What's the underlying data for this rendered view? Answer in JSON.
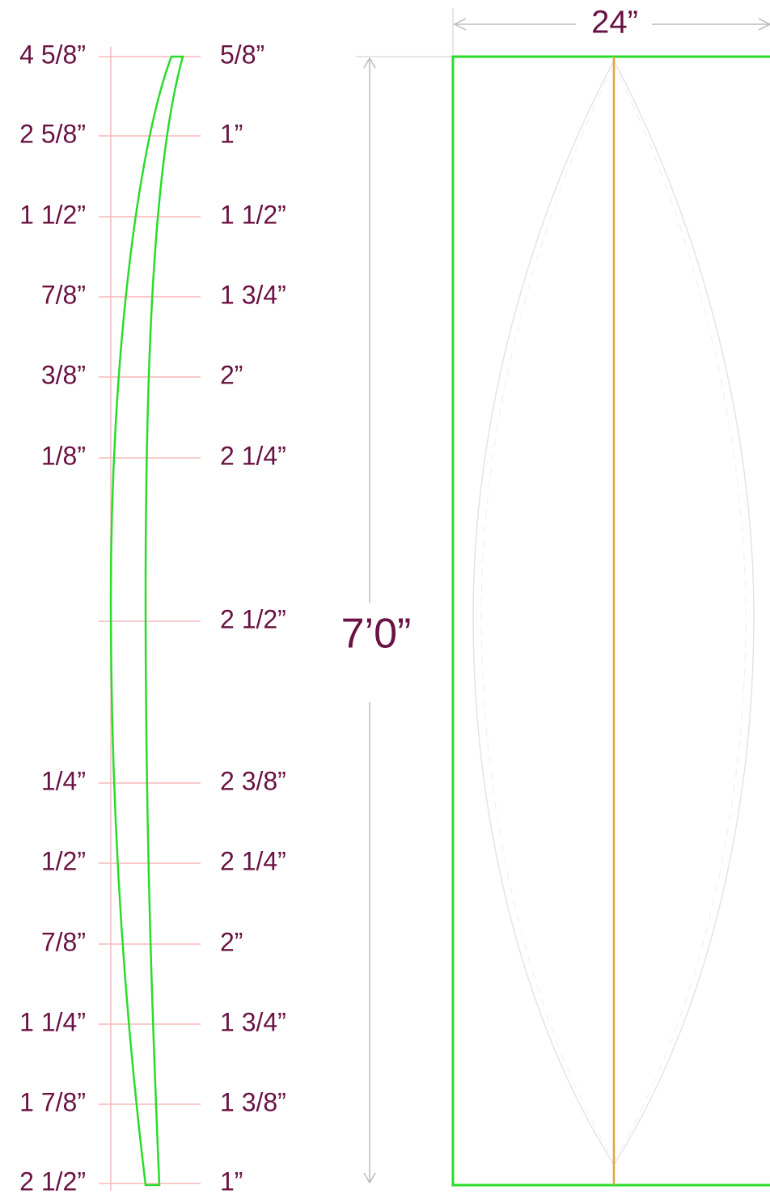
{
  "stations": [
    {
      "rocker": "4 5/8”",
      "thickness": "5/8”"
    },
    {
      "rocker": "2 5/8”",
      "thickness": "1”"
    },
    {
      "rocker": "1 1/2”",
      "thickness": "1 1/2”"
    },
    {
      "rocker": "7/8”",
      "thickness": "1 3/4”"
    },
    {
      "rocker": "3/8”",
      "thickness": "2”"
    },
    {
      "rocker": "1/8”",
      "thickness": "2 1/4”"
    },
    {
      "thickness": "2 1/2”"
    },
    {
      "rocker": "1/4”",
      "thickness": "2 3/8”"
    },
    {
      "rocker": "1/2”",
      "thickness": "2 1/4”"
    },
    {
      "rocker": "7/8”",
      "thickness": "2”"
    },
    {
      "rocker": "1 1/4”",
      "thickness": "1 3/4”"
    },
    {
      "rocker": "1 7/8”",
      "thickness": "1 3/8”"
    },
    {
      "rocker": "2 1/2”",
      "thickness": "1”"
    }
  ],
  "width": "24”",
  "length": "7’0”"
}
